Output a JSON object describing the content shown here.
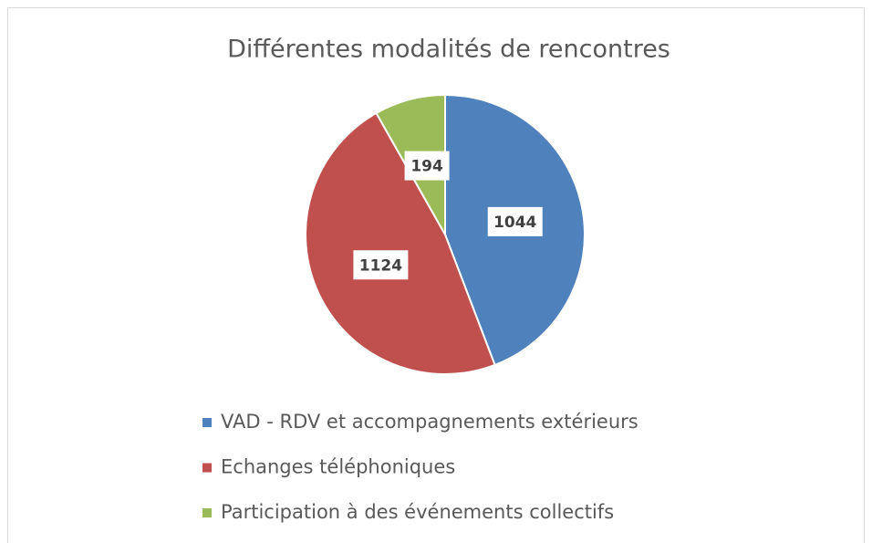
{
  "chart_data": {
    "type": "pie",
    "title": "Différentes modalités de rencontres",
    "categories": [
      "VAD - RDV et accompagnements extérieurs",
      "Echanges téléphoniques",
      "Participation à des événements collectifs"
    ],
    "values": [
      1044,
      1124,
      194
    ],
    "colors": [
      "#4f81bd",
      "#c0504d",
      "#9bbb59"
    ],
    "legend": "bottom"
  }
}
